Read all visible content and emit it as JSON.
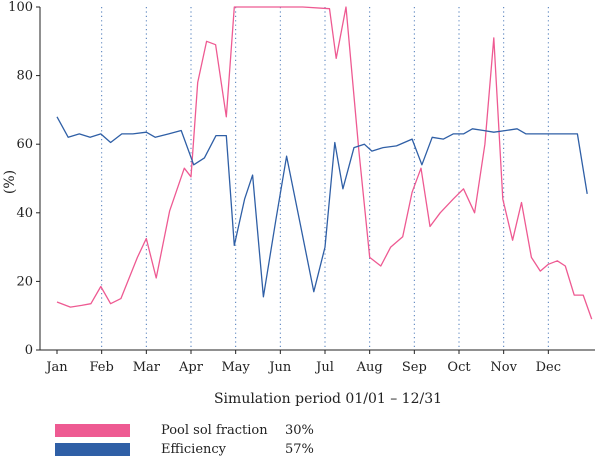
{
  "chart_data": {
    "type": "line",
    "xlabel": "Simulation period 01/01 – 12/31",
    "ylabel": "(%)",
    "ylim": [
      0,
      100
    ],
    "yticks": [
      0,
      20,
      40,
      60,
      80,
      100
    ],
    "xlim": [
      0,
      12
    ],
    "month_ticks": [
      {
        "label": "Jan",
        "x": 0
      },
      {
        "label": "Feb",
        "x": 1
      },
      {
        "label": "Mar",
        "x": 2
      },
      {
        "label": "Apr",
        "x": 3
      },
      {
        "label": "May",
        "x": 4
      },
      {
        "label": "Jun",
        "x": 5
      },
      {
        "label": "Jul",
        "x": 6
      },
      {
        "label": "Aug",
        "x": 7
      },
      {
        "label": "Sep",
        "x": 8
      },
      {
        "label": "Oct",
        "x": 9
      },
      {
        "label": "Nov",
        "x": 10
      },
      {
        "label": "Dec",
        "x": 11
      }
    ],
    "grid": "vertical dotted",
    "series": [
      {
        "name": "Pool sol fraction",
        "legend_value": "30%",
        "color": "#ee5a92",
        "x": [
          0,
          0.3,
          0.55,
          0.76,
          0.98,
          1.2,
          1.43,
          1.8,
          2.0,
          2.22,
          2.52,
          2.85,
          3.0,
          3.15,
          3.35,
          3.55,
          3.79,
          3.97,
          4.72,
          5.5,
          6.1,
          6.25,
          6.47,
          6.76,
          7.0,
          7.25,
          7.47,
          7.74,
          7.95,
          8.15,
          8.35,
          8.58,
          8.87,
          9.1,
          9.35,
          9.58,
          9.78,
          9.98,
          10.2,
          10.4,
          10.62,
          10.82,
          11.0,
          11.2,
          11.38,
          11.58,
          11.78,
          11.97
        ],
        "values": [
          14,
          12.5,
          13,
          13.5,
          18.5,
          13.5,
          15,
          27,
          32.5,
          21,
          40.5,
          53,
          50.5,
          78,
          90,
          89,
          68,
          100,
          100,
          100,
          99.5,
          85,
          100,
          58,
          27,
          24.5,
          30,
          33,
          46,
          53,
          36,
          40,
          44,
          47,
          40,
          60,
          91,
          44,
          32,
          43,
          27,
          23,
          25,
          26,
          24.5,
          16,
          16,
          9
        ]
      },
      {
        "name": "Efficiency",
        "legend_value": "57%",
        "color": "#2f5fa6",
        "x": [
          0,
          0.25,
          0.5,
          0.74,
          0.98,
          1.2,
          1.45,
          1.7,
          2.0,
          2.2,
          2.5,
          2.78,
          3.06,
          3.3,
          3.56,
          3.79,
          3.97,
          4.2,
          4.38,
          4.62,
          4.9,
          5.14,
          5.45,
          5.75,
          6.0,
          6.22,
          6.4,
          6.65,
          6.88,
          7.05,
          7.3,
          7.6,
          7.95,
          8.17,
          8.4,
          8.65,
          8.87,
          9.1,
          9.3,
          9.55,
          9.78,
          10.05,
          10.3,
          10.5,
          10.72,
          11.0,
          11.4,
          11.65,
          11.87
        ],
        "values": [
          68,
          62,
          63,
          62,
          63,
          60.5,
          63,
          63,
          63.5,
          62,
          63,
          64,
          54,
          56,
          62.5,
          62.5,
          30.5,
          44,
          51,
          15.5,
          38,
          56.5,
          36.5,
          17,
          30,
          60.5,
          47,
          59,
          60,
          58,
          59,
          59.5,
          61.5,
          54,
          62,
          61.5,
          63,
          63,
          64.5,
          64,
          63.5,
          64,
          64.5,
          63,
          63,
          63,
          63,
          63,
          45.5
        ]
      }
    ]
  }
}
